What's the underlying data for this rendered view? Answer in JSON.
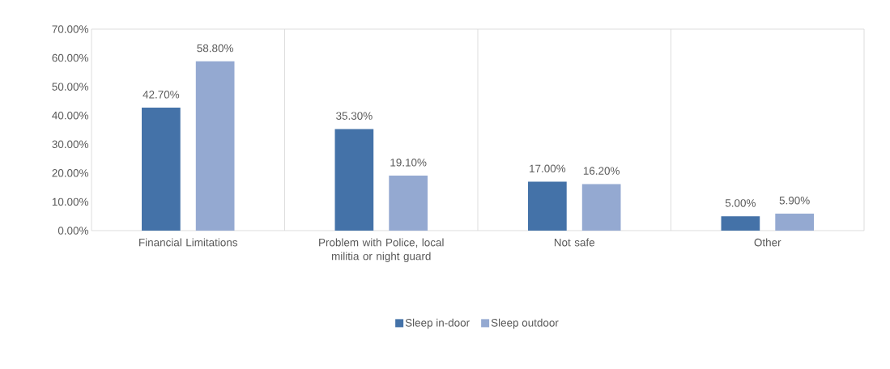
{
  "chart_data": {
    "type": "bar",
    "categories": [
      "Financial Limitations",
      "Problem with Police, local militia or night guard",
      "Not safe",
      "Other"
    ],
    "series": [
      {
        "name": "Sleep in-door",
        "color": "#4472a8",
        "values": [
          42.7,
          35.3,
          17.0,
          5.0
        ],
        "value_labels": [
          "42.70%",
          "35.30%",
          "17.00%",
          "5.00%"
        ]
      },
      {
        "name": "Sleep outdoor",
        "color": "#94a9d1",
        "values": [
          58.8,
          19.1,
          16.2,
          5.9
        ],
        "value_labels": [
          "58.80%",
          "19.10%",
          "16.20%",
          "5.90%"
        ]
      }
    ],
    "ylim": [
      0,
      70
    ],
    "yticks": [
      {
        "value": 0,
        "label": "0.00%"
      },
      {
        "value": 10,
        "label": "10.00%"
      },
      {
        "value": 20,
        "label": "20.00%"
      },
      {
        "value": 30,
        "label": "30.00%"
      },
      {
        "value": 40,
        "label": "40.00%"
      },
      {
        "value": 50,
        "label": "50.00%"
      },
      {
        "value": 60,
        "label": "60.00%"
      },
      {
        "value": 70,
        "label": "70.00%"
      }
    ],
    "grid": "x",
    "legend": "bottom"
  }
}
